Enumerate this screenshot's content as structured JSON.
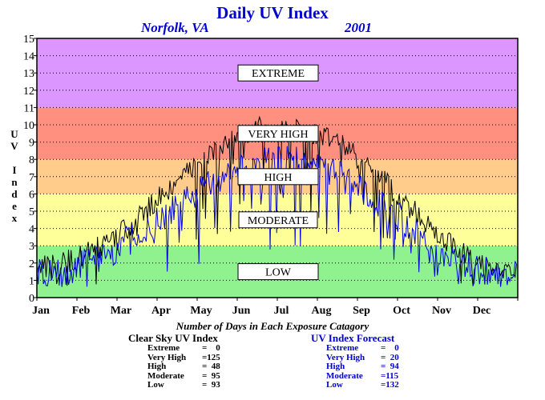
{
  "title": "Daily UV Index",
  "location": "Norfolk, VA",
  "year": "2001",
  "colors": {
    "low": "#8ff28f",
    "moderate": "#ffff99",
    "high": "#ffcc8c",
    "very_high": "#ff9080",
    "extreme": "#dc96ff",
    "clear_sky_line": "#000000",
    "forecast_line": "#0000dd",
    "accent_text": "#0000d0"
  },
  "chart_data": {
    "type": "line",
    "title": "Daily UV Index",
    "ylabel": "UV Index",
    "ylabel_letters": [
      "U",
      "V",
      "",
      "I",
      "n",
      "d",
      "e",
      "x"
    ],
    "ylim": [
      0,
      15
    ],
    "yticks": [
      "0",
      "1",
      "2",
      "3",
      "4",
      "5",
      "6",
      "7",
      "8",
      "9",
      "10",
      "11",
      "12",
      "13",
      "14",
      "15"
    ],
    "x_tick_labels": [
      "Jan",
      "Feb",
      "Mar",
      "Apr",
      "May",
      "Jun",
      "Jul",
      "Aug",
      "Sep",
      "Oct",
      "Nov",
      "Dec"
    ],
    "grid": "horizontal dotted",
    "bands": [
      {
        "label": "LOW",
        "from": 0,
        "to": 3,
        "color": "#8ff28f"
      },
      {
        "label": "MODERATE",
        "from": 3,
        "to": 6,
        "color": "#ffff99"
      },
      {
        "label": "HIGH",
        "from": 6,
        "to": 8,
        "color": "#ffcc8c"
      },
      {
        "label": "VERY HIGH",
        "from": 8,
        "to": 11,
        "color": "#ff9080"
      },
      {
        "label": "EXTREME",
        "from": 11,
        "to": 15,
        "color": "#dc96ff"
      }
    ],
    "series_style": [
      {
        "key": "clear_sky",
        "color": "#000000"
      },
      {
        "key": "forecast",
        "color": "#0000dd"
      }
    ],
    "monthly_profile": {
      "months": [
        "Jan",
        "Feb",
        "Mar",
        "Apr",
        "May",
        "Jun",
        "Jul",
        "Aug",
        "Sep",
        "Oct",
        "Nov",
        "Dec"
      ],
      "clear_sky_typical": [
        1.8,
        2.8,
        4.5,
        6.8,
        8.6,
        9.8,
        9.8,
        9.0,
        7.2,
        4.8,
        2.6,
        1.7
      ],
      "forecast_typical": [
        1.4,
        2.2,
        3.6,
        5.2,
        6.8,
        7.8,
        8.0,
        7.2,
        5.6,
        3.8,
        2.0,
        1.3
      ]
    }
  },
  "footer": {
    "title": "Number of Days in Each Exposure Catagory",
    "clear_sky": {
      "heading": "Clear Sky UV Index",
      "rows": [
        {
          "label": "Extreme",
          "value": "=    0"
        },
        {
          "label": "Very High",
          "value": "=125"
        },
        {
          "label": "High",
          "value": "=  48"
        },
        {
          "label": "Moderate",
          "value": "=  95"
        },
        {
          "label": "Low",
          "value": "=  93"
        }
      ]
    },
    "forecast": {
      "heading": "UV Index Forecast",
      "rows": [
        {
          "label": "Extreme",
          "value": "=    0"
        },
        {
          "label": "Very High",
          "value": "=  20"
        },
        {
          "label": "High",
          "value": "=  94"
        },
        {
          "label": "Moderate",
          "value": "=115"
        },
        {
          "label": "Low",
          "value": "=132"
        }
      ]
    }
  }
}
